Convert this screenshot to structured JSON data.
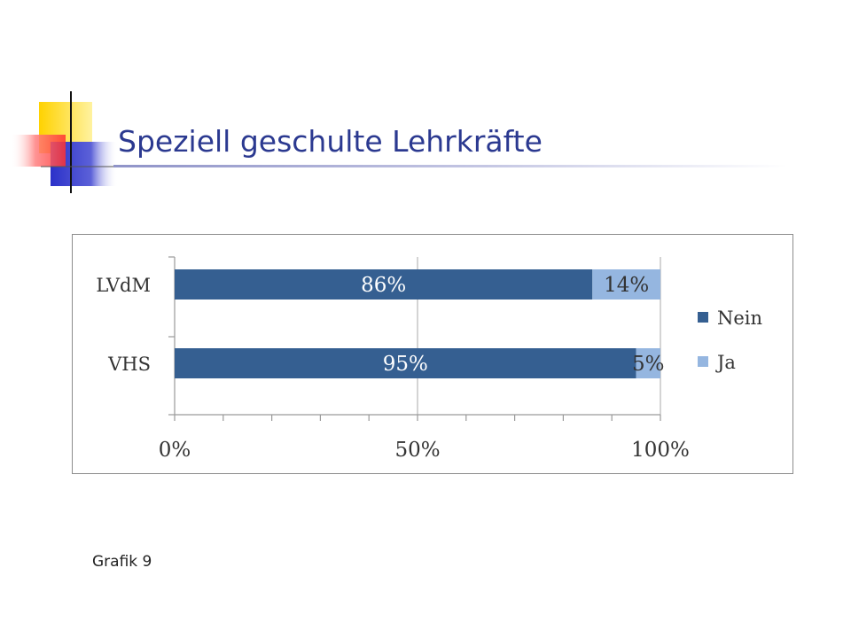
{
  "slide": {
    "title": "Speziell geschulte Lehrkräfte",
    "caption": "Grafik 9"
  },
  "colors": {
    "title": "#2b3990",
    "nein": "#355f91",
    "ja": "#95b6e0",
    "deco_yellow": "#ffd200",
    "deco_blue": "#2b31c9",
    "deco_red": "#ff3b3b"
  },
  "chart_data": {
    "type": "bar",
    "orientation": "horizontal",
    "stacked": true,
    "categories": [
      "LVdM",
      "VHS"
    ],
    "series": [
      {
        "name": "Nein",
        "values": [
          86,
          95
        ],
        "labels": [
          "86%",
          "95%"
        ],
        "color": "#355f91"
      },
      {
        "name": "Ja",
        "values": [
          14,
          5
        ],
        "labels": [
          "14%",
          "5%"
        ],
        "color": "#95b6e0"
      }
    ],
    "xlim": [
      0,
      100
    ],
    "x_ticks": [
      "0%",
      "50%",
      "100%"
    ],
    "legend_position": "right",
    "grid": true
  }
}
